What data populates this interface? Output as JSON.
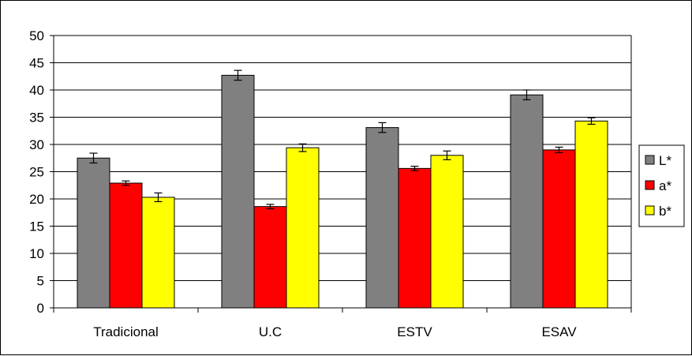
{
  "chart_data": {
    "type": "bar",
    "title": "",
    "xlabel": "",
    "ylabel": "",
    "categories": [
      "Tradicional",
      "U.C",
      "ESTV",
      "ESAV"
    ],
    "series": [
      {
        "name": "L*",
        "color": "#808080",
        "values": [
          27.5,
          42.7,
          33.1,
          39.1
        ],
        "errors": [
          0.9,
          0.9,
          0.9,
          0.9
        ]
      },
      {
        "name": "a*",
        "color": "#ff0000",
        "values": [
          22.9,
          18.6,
          25.6,
          29.0
        ],
        "errors": [
          0.4,
          0.4,
          0.4,
          0.5
        ]
      },
      {
        "name": "b*",
        "color": "#ffff00",
        "values": [
          20.3,
          29.4,
          28.0,
          34.3
        ],
        "errors": [
          0.8,
          0.7,
          0.8,
          0.6
        ]
      }
    ],
    "ylim": [
      0,
      50
    ],
    "yticks": [
      "0",
      "5",
      "10",
      "15",
      "20",
      "25",
      "30",
      "35",
      "40",
      "45",
      "50"
    ],
    "grid": true,
    "legend_position": "right"
  }
}
